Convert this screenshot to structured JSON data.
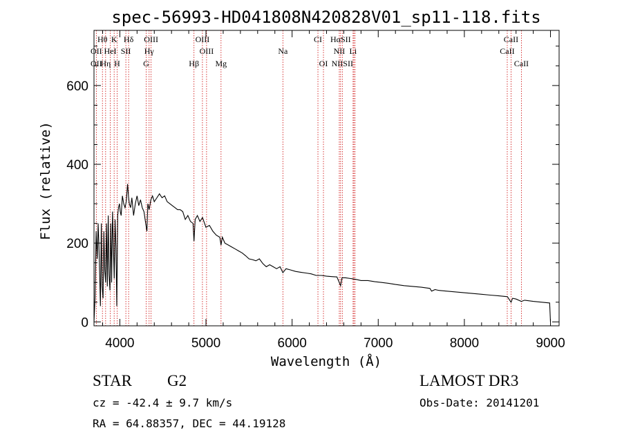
{
  "chart_data": {
    "type": "line",
    "title": "spec-56993-HD041808N420828V01_sp11-118.fits",
    "xlabel": "Wavelength (Å)",
    "ylabel": "Flux (relative)",
    "xlim": [
      3700,
      9100
    ],
    "ylim": [
      -10,
      740
    ],
    "x_ticks": [
      4000,
      5000,
      6000,
      7000,
      8000,
      9000
    ],
    "y_ticks": [
      0,
      200,
      400,
      600
    ],
    "series": [
      {
        "name": "flux",
        "x": [
          3700,
          3712,
          3725,
          3738,
          3748,
          3758,
          3765,
          3775,
          3785,
          3795,
          3805,
          3815,
          3825,
          3835,
          3845,
          3855,
          3865,
          3875,
          3885,
          3895,
          3905,
          3915,
          3925,
          3935,
          3945,
          3955,
          3965,
          3975,
          3985,
          3995,
          4005,
          4015,
          4030,
          4045,
          4060,
          4075,
          4090,
          4100,
          4110,
          4125,
          4140,
          4160,
          4180,
          4200,
          4220,
          4240,
          4260,
          4280,
          4300,
          4315,
          4325,
          4340,
          4360,
          4380,
          4400,
          4430,
          4460,
          4490,
          4520,
          4550,
          4580,
          4610,
          4640,
          4670,
          4700,
          4730,
          4760,
          4790,
          4820,
          4850,
          4861,
          4875,
          4900,
          4930,
          4960,
          5000,
          5040,
          5080,
          5120,
          5160,
          5175,
          5190,
          5220,
          5260,
          5300,
          5340,
          5380,
          5420,
          5460,
          5500,
          5540,
          5580,
          5620,
          5660,
          5700,
          5740,
          5780,
          5820,
          5860,
          5893,
          5930,
          5980,
          6040,
          6100,
          6160,
          6220,
          6280,
          6340,
          6400,
          6460,
          6520,
          6563,
          6580,
          6620,
          6680,
          6740,
          6800,
          6880,
          6960,
          7040,
          7120,
          7200,
          7300,
          7400,
          7500,
          7600,
          7620,
          7660,
          7700,
          7800,
          7900,
          8000,
          8100,
          8200,
          8300,
          8400,
          8500,
          8542,
          8560,
          8600,
          8662,
          8700,
          8800,
          8900,
          8990,
          9000
        ],
        "values": [
          0,
          60,
          230,
          160,
          250,
          190,
          130,
          40,
          250,
          90,
          60,
          230,
          130,
          100,
          250,
          90,
          270,
          120,
          80,
          250,
          100,
          280,
          200,
          110,
          260,
          190,
          40,
          270,
          290,
          300,
          280,
          270,
          320,
          300,
          290,
          305,
          350,
          320,
          300,
          290,
          315,
          270,
          300,
          320,
          295,
          310,
          290,
          280,
          250,
          230,
          300,
          285,
          310,
          320,
          305,
          315,
          325,
          315,
          320,
          305,
          300,
          295,
          290,
          285,
          285,
          280,
          260,
          270,
          255,
          250,
          205,
          260,
          270,
          255,
          265,
          240,
          245,
          230,
          220,
          215,
          195,
          215,
          200,
          195,
          190,
          185,
          180,
          175,
          168,
          160,
          158,
          155,
          160,
          148,
          140,
          145,
          140,
          135,
          140,
          125,
          135,
          132,
          128,
          126,
          124,
          122,
          118,
          118,
          116,
          115,
          114,
          92,
          112,
          112,
          110,
          108,
          105,
          105,
          102,
          100,
          98,
          95,
          92,
          90,
          88,
          85,
          78,
          82,
          80,
          78,
          76,
          74,
          72,
          70,
          68,
          66,
          64,
          50,
          60,
          58,
          52,
          55,
          52,
          50,
          48,
          0
        ]
      }
    ],
    "spectral_lines": [
      {
        "label": "Hθ",
        "x": 3798,
        "row": 0
      },
      {
        "label": "K",
        "x": 3934,
        "row": 0
      },
      {
        "label": "Hδ",
        "x": 4102,
        "row": 0
      },
      {
        "label": "OIII",
        "x": 4363,
        "row": 0
      },
      {
        "label": "OIII",
        "x": 4959,
        "row": 0
      },
      {
        "label": "CI",
        "x": 6300,
        "row": 0
      },
      {
        "label": "HαSII",
        "x": 6563,
        "row": 0
      },
      {
        "label": "CaII",
        "x": 8542,
        "row": 0
      },
      {
        "label": "OII",
        "x": 3727,
        "row": 1
      },
      {
        "label": "HeI",
        "x": 3889,
        "row": 1
      },
      {
        "label": "SII",
        "x": 4070,
        "row": 1
      },
      {
        "label": "Hγ",
        "x": 4340,
        "row": 1
      },
      {
        "label": "OIII",
        "x": 5007,
        "row": 1
      },
      {
        "label": "Na",
        "x": 5893,
        "row": 1
      },
      {
        "label": "NII",
        "x": 6548,
        "row": 1
      },
      {
        "label": "Li",
        "x": 6708,
        "row": 1
      },
      {
        "label": "CaII",
        "x": 8498,
        "row": 1
      },
      {
        "label": "OII",
        "x": 3727,
        "row": 2
      },
      {
        "label": "Hη",
        "x": 3835,
        "row": 2
      },
      {
        "label": "H",
        "x": 3968,
        "row": 2
      },
      {
        "label": "G",
        "x": 4305,
        "row": 2
      },
      {
        "label": "Hβ",
        "x": 4861,
        "row": 2
      },
      {
        "label": "Mg",
        "x": 5175,
        "row": 2
      },
      {
        "label": "OI",
        "x": 6364,
        "row": 2
      },
      {
        "label": "NIISII",
        "x": 6583,
        "row": 2
      },
      {
        "label": "CaII",
        "x": 8662,
        "row": 2
      }
    ],
    "line_markers": [
      3727,
      3798,
      3835,
      3889,
      3934,
      3968,
      4070,
      4102,
      4305,
      4340,
      4363,
      4861,
      4959,
      5007,
      5175,
      5893,
      6300,
      6364,
      6548,
      6563,
      6583,
      6708,
      6717,
      6731,
      8498,
      8542,
      8662
    ]
  },
  "info": {
    "object_class": "STAR",
    "subclass": "G2",
    "survey": "LAMOST DR3",
    "redshift": "cz = -42.4 ± 9.7 km/s",
    "obs_date": "Obs-Date: 20141201",
    "coords": "RA =  64.88357, DEC =  44.19128"
  },
  "colors": {
    "line_marker": "#cc0000",
    "spectrum": "#000000"
  }
}
